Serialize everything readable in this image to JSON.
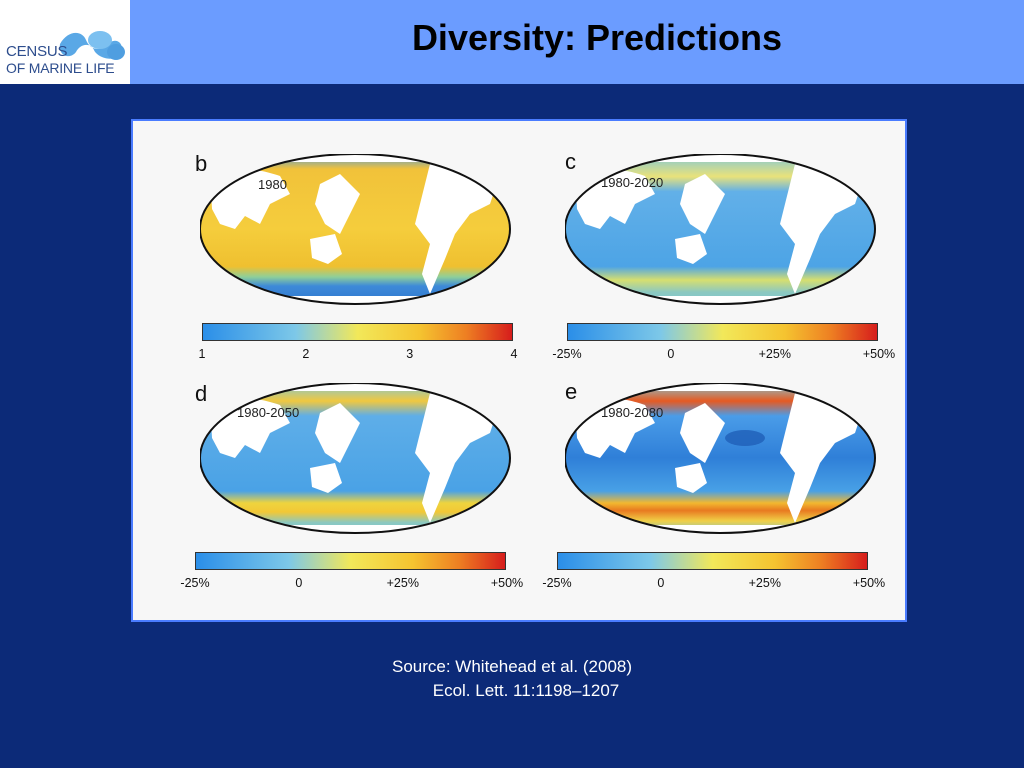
{
  "logo": {
    "line1": "CENSUS",
    "line2": "OF MARINE LIFE"
  },
  "title": "Diversity: Predictions",
  "panels": [
    {
      "letter": "b",
      "period": "1980",
      "ticks": [
        "1",
        "2",
        "3",
        "4"
      ]
    },
    {
      "letter": "c",
      "period": "1980-2020",
      "ticks": [
        "-25%",
        "0",
        "+25%",
        "+50%"
      ]
    },
    {
      "letter": "d",
      "period": "1980-2050",
      "ticks": [
        "-25%",
        "0",
        "+25%",
        "+50%"
      ]
    },
    {
      "letter": "e",
      "period": "1980-2080",
      "ticks": [
        "-25%",
        "0",
        "+25%",
        "+50%"
      ]
    }
  ],
  "source": {
    "line1": "Source: Whitehead et al. (2008)",
    "line2": "Ecol. Lett. 11:1198–1207"
  },
  "colors": {
    "header": "#6b9cff",
    "background": "#0c2a78",
    "figure_border": "#4a7cff"
  }
}
